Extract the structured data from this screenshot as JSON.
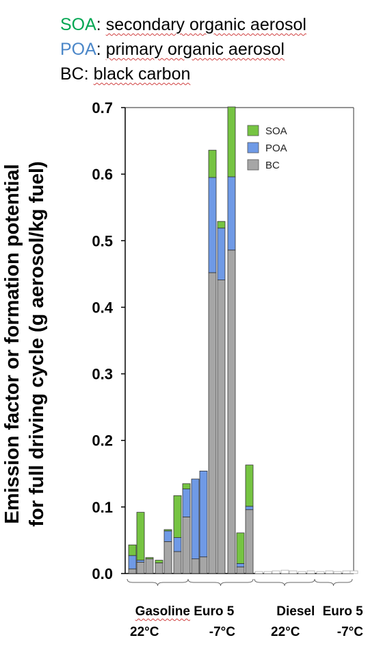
{
  "header_legend": [
    {
      "abbr": "SOA",
      "sep": ":",
      "desc": "secondary organic aerosol",
      "color": "#00a651"
    },
    {
      "abbr": "POA",
      "sep": ":",
      "desc": "primary organic aerosol",
      "color": "#4a86c8"
    },
    {
      "abbr": "BC",
      "sep": ":",
      "desc": "black carbon",
      "color": "#000000"
    }
  ],
  "ylabel_line1": "Emission factor or formation potential",
  "ylabel_line2": "for full driving cycle (g aerosol/kg fuel)",
  "group_labels": {
    "gas_fuel": "Gasoline",
    "gas_euro": "Euro 5",
    "gas_t1": "22°C",
    "gas_t2": "-7°C",
    "die_fuel": "Diesel",
    "die_euro": "Euro 5",
    "die_t1": "22°C",
    "die_t2": "-7°C"
  },
  "chart_data": {
    "type": "bar",
    "stacked": true,
    "ylim": [
      0,
      0.7
    ],
    "yticks": [
      "0.0",
      "0.1",
      "0.2",
      "0.3",
      "0.4",
      "0.5",
      "0.6",
      "0.7"
    ],
    "legend": {
      "position": "top-right",
      "entries": [
        "SOA",
        "POA",
        "BC"
      ]
    },
    "colors": {
      "SOA": "#76c442",
      "POA": "#6f9ae6",
      "BC": "#a6a6a6"
    },
    "series": [
      {
        "name": "BC",
        "values": [
          0.007,
          0.017,
          0.022,
          0.016,
          0.048,
          0.033,
          0.085,
          0.022,
          0.025,
          0.452,
          0.441,
          0.486,
          0.01,
          0.096,
          0.003,
          0.003,
          0.004,
          0.005,
          0.004,
          0.003,
          0.004,
          0.003,
          0.004,
          0.003,
          0.004,
          0.004
        ]
      },
      {
        "name": "POA",
        "values": [
          0.02,
          0.003,
          0.0,
          0.0,
          0.016,
          0.021,
          0.042,
          0.12,
          0.129,
          0.143,
          0.078,
          0.11,
          0.005,
          0.005,
          0.0,
          0.0,
          0.0,
          0.0,
          0.0,
          0.0,
          0.0,
          0.0,
          0.0,
          0.0,
          0.0,
          0.0
        ]
      },
      {
        "name": "SOA",
        "values": [
          0.016,
          0.072,
          0.002,
          0.004,
          0.002,
          0.063,
          0.008,
          0.0,
          0.0,
          0.041,
          0.01,
          0.105,
          0.046,
          0.062,
          0.0,
          0.0,
          0.0,
          0.0,
          0.0,
          0.0,
          0.0,
          0.0,
          0.0,
          0.0,
          0.0,
          0.0
        ]
      }
    ]
  }
}
